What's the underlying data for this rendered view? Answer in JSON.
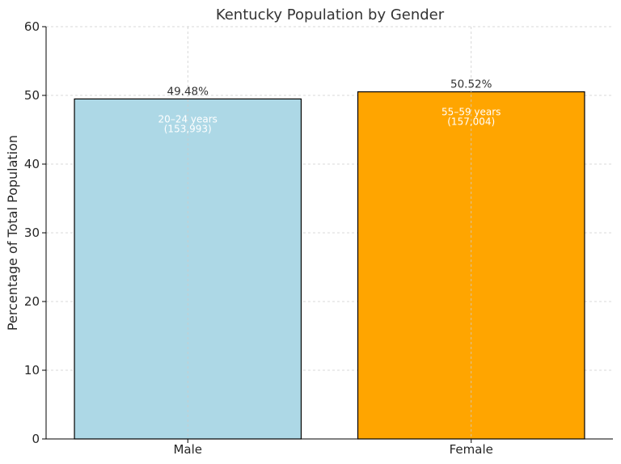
{
  "chart_data": {
    "type": "bar",
    "title": "Kentucky Population by Gender",
    "xlabel": "",
    "ylabel": "Percentage of Total Population",
    "categories": [
      "Male",
      "Female"
    ],
    "values": [
      49.48,
      50.52
    ],
    "value_labels": [
      "49.48%",
      "50.52%"
    ],
    "annotations": [
      [
        "20–24 years",
        "(153,993)"
      ],
      [
        "55–59 years",
        "(157,004)"
      ]
    ],
    "colors": [
      "#add8e6",
      "#ffa500"
    ],
    "ylim": [
      0,
      60
    ],
    "yticks": [
      0,
      10,
      20,
      30,
      40,
      50,
      60
    ],
    "grid": true
  }
}
